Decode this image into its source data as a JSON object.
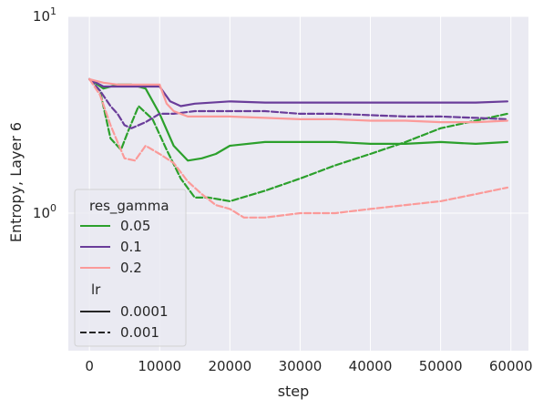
{
  "chart_data": {
    "type": "line",
    "title": "",
    "xlabel": "step",
    "ylabel": "Entropy, Layer 6",
    "xlim": [
      -3000,
      62500
    ],
    "x_ticks": [
      0,
      10000,
      20000,
      30000,
      40000,
      50000,
      60000
    ],
    "x_tick_labels": [
      "0",
      "10000",
      "20000",
      "30000",
      "40000",
      "50000",
      "60000"
    ],
    "y_scale": "log",
    "ylim": [
      0.2,
      10
    ],
    "y_ticks": [
      1,
      10
    ],
    "y_tick_base": "10",
    "y_tick_exponents": [
      "0",
      "1"
    ],
    "grid": true,
    "legend": {
      "placement": "lower-left",
      "hue_title": "res_gamma",
      "hue_entries": [
        {
          "label": "0.05",
          "color": "#2ca02c"
        },
        {
          "label": "0.1",
          "color": "#6a3d9a"
        },
        {
          "label": "0.2",
          "color": "#fb9a99"
        }
      ],
      "style_title": "lr",
      "style_entries": [
        {
          "label": "0.0001",
          "dash": "solid"
        },
        {
          "label": "0.001",
          "dash": "dashed"
        }
      ]
    },
    "series": [
      {
        "res_gamma": "0.05",
        "lr": "0.0001",
        "color": "#2ca02c",
        "dash": "solid",
        "x": [
          0,
          2000,
          4000,
          6000,
          8000,
          10000,
          12000,
          14000,
          16000,
          18000,
          20000,
          25000,
          30000,
          35000,
          40000,
          45000,
          50000,
          55000,
          59500
        ],
        "y": [
          4.8,
          4.3,
          4.5,
          4.5,
          4.3,
          3.2,
          2.2,
          1.85,
          1.9,
          2.0,
          2.2,
          2.3,
          2.3,
          2.3,
          2.25,
          2.25,
          2.3,
          2.25,
          2.3
        ]
      },
      {
        "res_gamma": "0.05",
        "lr": "0.001",
        "color": "#2ca02c",
        "dash": "dashed",
        "x": [
          0,
          1500,
          3000,
          4500,
          5500,
          7000,
          9000,
          11000,
          13000,
          15000,
          17000,
          20000,
          25000,
          30000,
          35000,
          40000,
          45000,
          50000,
          55000,
          59500
        ],
        "y": [
          4.8,
          4.2,
          2.4,
          2.1,
          2.6,
          3.5,
          3.0,
          2.1,
          1.5,
          1.2,
          1.2,
          1.15,
          1.3,
          1.5,
          1.75,
          2.0,
          2.3,
          2.7,
          2.95,
          3.2
        ]
      },
      {
        "res_gamma": "0.1",
        "lr": "0.0001",
        "color": "#6a3d9a",
        "dash": "solid",
        "x": [
          0,
          2000,
          4000,
          6000,
          8000,
          10000,
          11500,
          13000,
          15000,
          20000,
          25000,
          30000,
          35000,
          40000,
          45000,
          50000,
          55000,
          59500
        ],
        "y": [
          4.8,
          4.4,
          4.4,
          4.4,
          4.4,
          4.4,
          3.7,
          3.5,
          3.6,
          3.7,
          3.65,
          3.65,
          3.65,
          3.65,
          3.65,
          3.65,
          3.65,
          3.7
        ]
      },
      {
        "res_gamma": "0.1",
        "lr": "0.001",
        "color": "#6a3d9a",
        "dash": "dashed",
        "x": [
          0,
          1500,
          3000,
          4000,
          5000,
          6000,
          8000,
          10000,
          12000,
          15000,
          20000,
          25000,
          30000,
          35000,
          40000,
          45000,
          50000,
          55000,
          59500
        ],
        "y": [
          4.8,
          4.2,
          3.5,
          3.2,
          2.8,
          2.7,
          2.9,
          3.2,
          3.2,
          3.3,
          3.3,
          3.3,
          3.2,
          3.2,
          3.15,
          3.1,
          3.1,
          3.05,
          3.0
        ]
      },
      {
        "res_gamma": "0.2",
        "lr": "0.0001",
        "color": "#fb9a99",
        "dash": "solid",
        "x": [
          0,
          2000,
          4000,
          6000,
          8000,
          10000,
          11000,
          12000,
          14000,
          16000,
          20000,
          25000,
          30000,
          35000,
          40000,
          45000,
          50000,
          55000,
          59500
        ],
        "y": [
          4.8,
          4.6,
          4.5,
          4.5,
          4.5,
          4.5,
          3.6,
          3.3,
          3.1,
          3.1,
          3.1,
          3.05,
          3.0,
          3.0,
          2.95,
          2.95,
          2.9,
          2.9,
          2.95
        ]
      },
      {
        "res_gamma": "0.2",
        "lr": "0.001",
        "color": "#fb9a99",
        "dash": "dashed",
        "x": [
          0,
          1500,
          3000,
          4000,
          5000,
          6500,
          8000,
          10000,
          12000,
          14000,
          16000,
          18000,
          20000,
          22000,
          25000,
          30000,
          35000,
          40000,
          45000,
          50000,
          55000,
          59500
        ],
        "y": [
          4.8,
          4.0,
          2.8,
          2.3,
          1.9,
          1.85,
          2.2,
          2.0,
          1.8,
          1.45,
          1.25,
          1.1,
          1.05,
          0.95,
          0.95,
          1.0,
          1.0,
          1.05,
          1.1,
          1.15,
          1.25,
          1.35
        ]
      }
    ]
  }
}
